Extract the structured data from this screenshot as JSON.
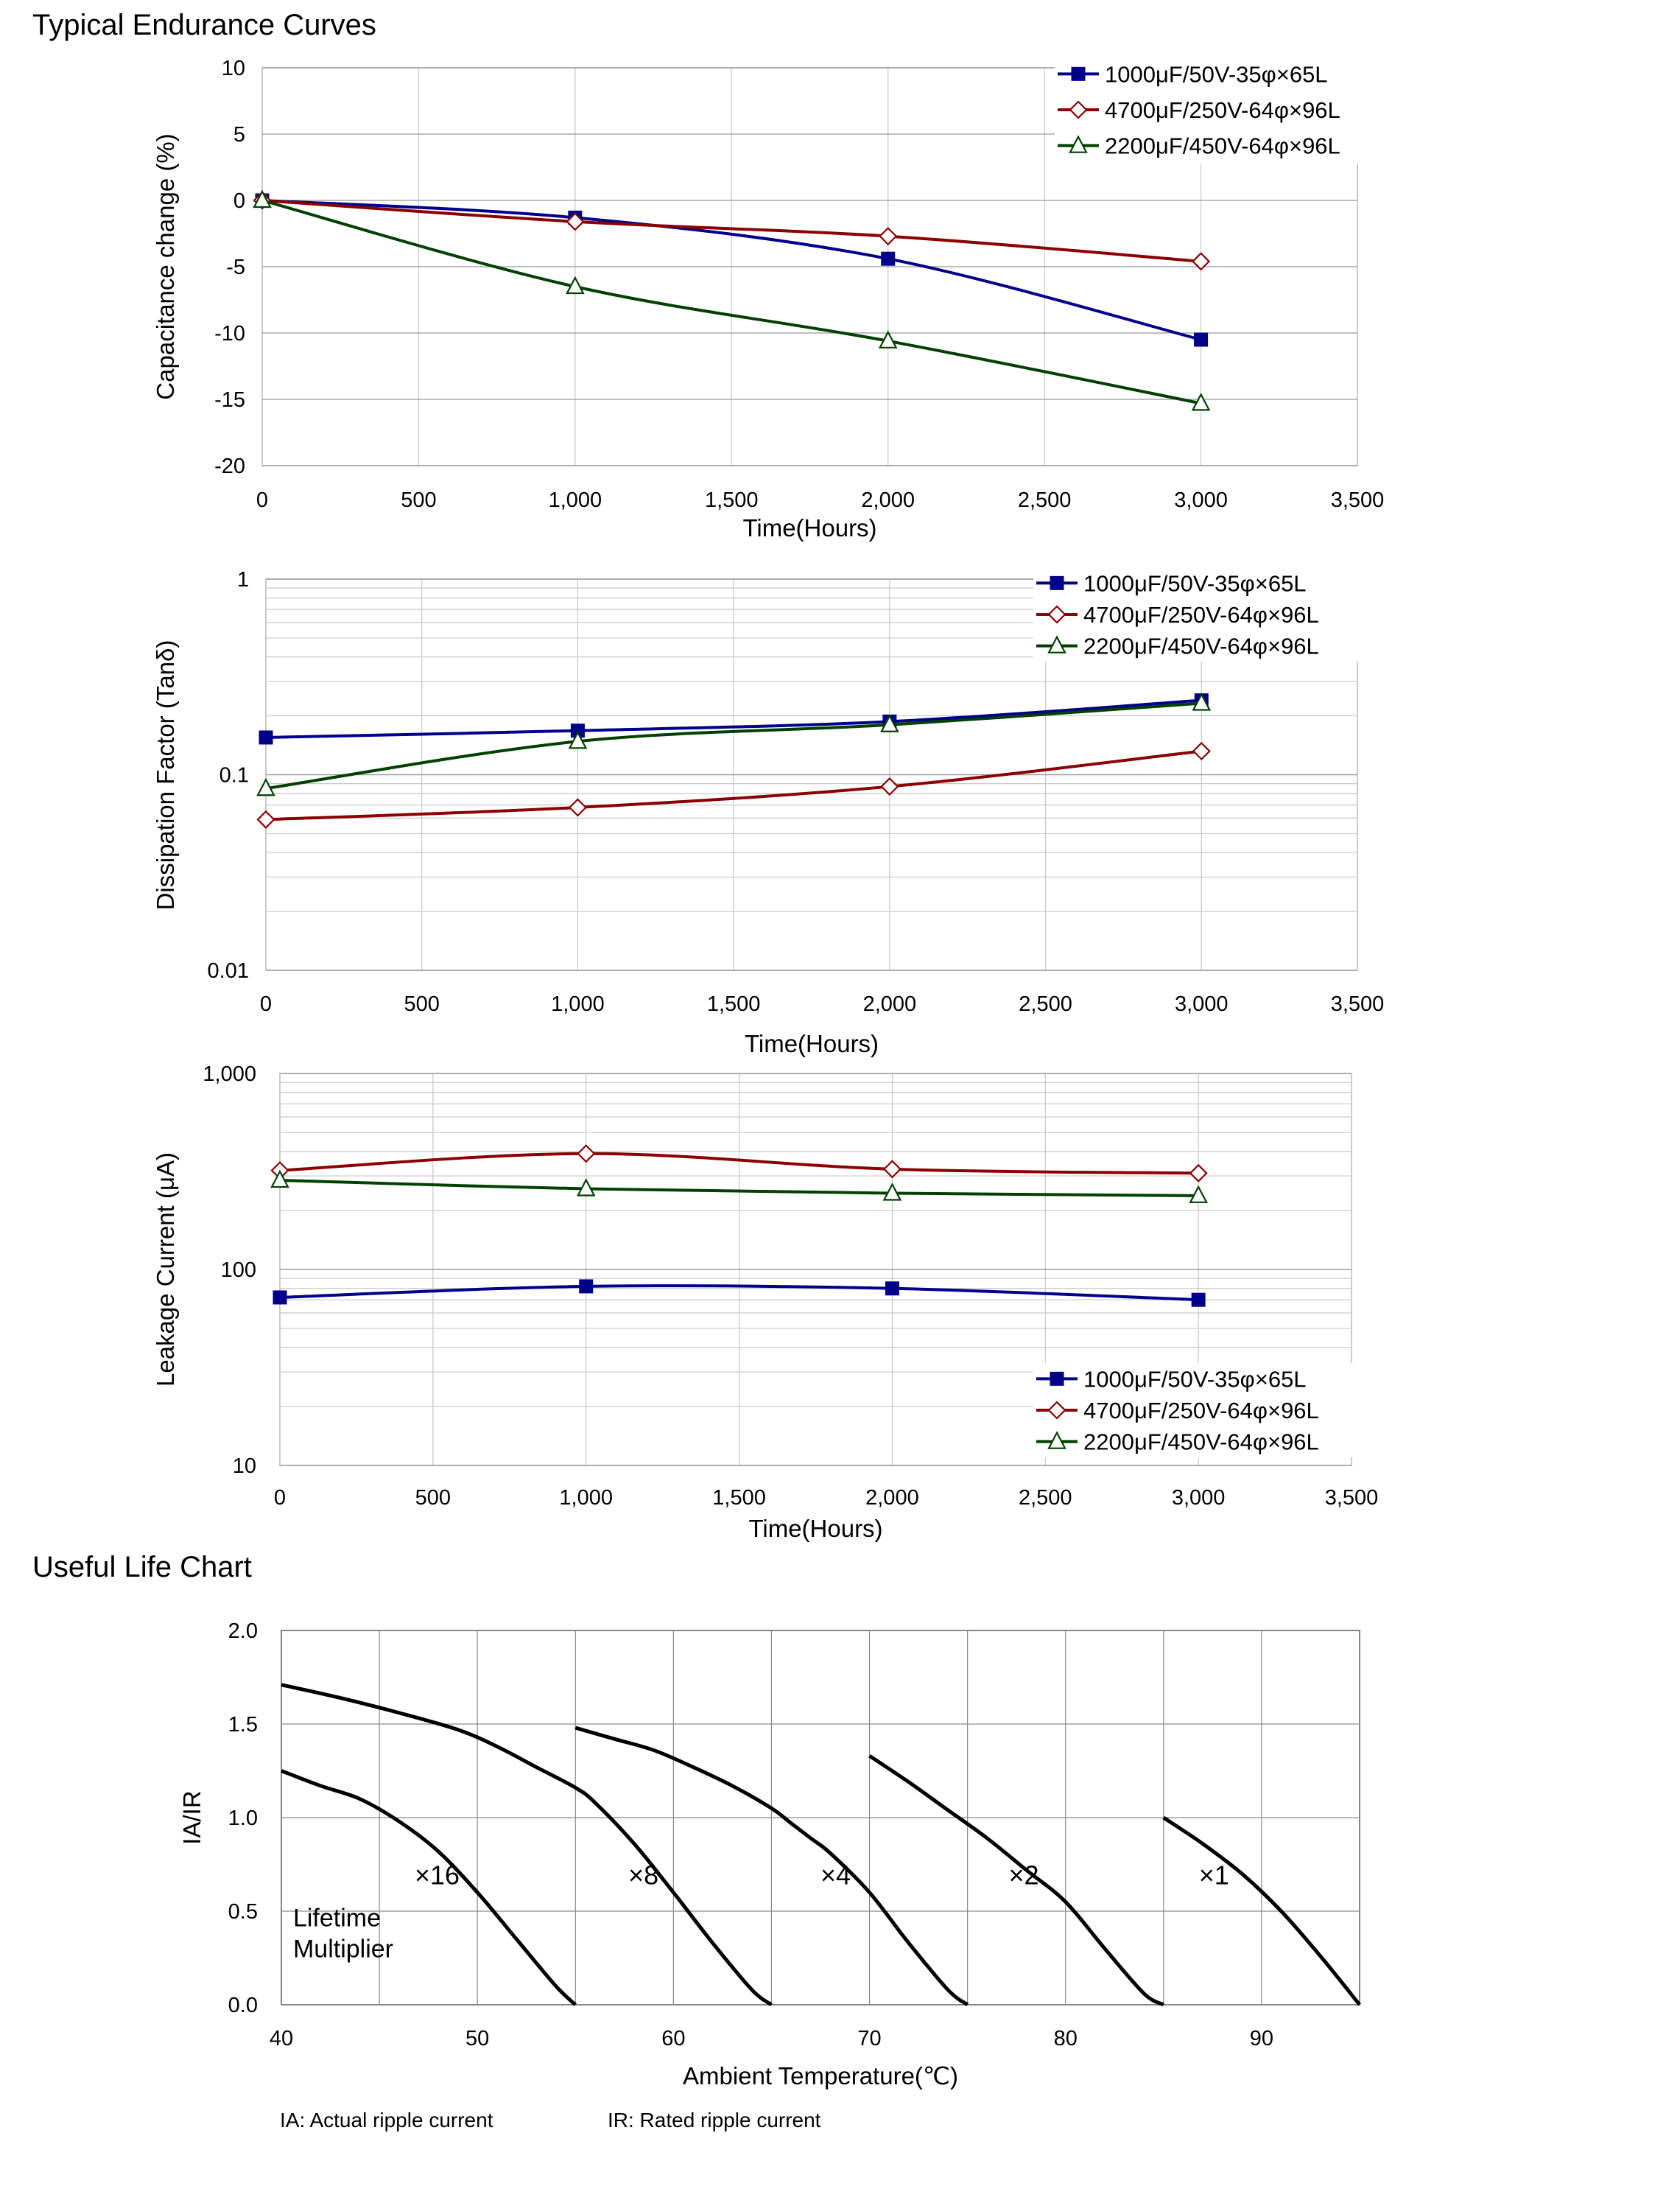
{
  "sections": {
    "endurance_title": "Typical Endurance Curves",
    "useful_life_title": "Useful Life Chart"
  },
  "footnotes": {
    "ia": "IA: Actual ripple current",
    "ir": "IR: Rated ripple current"
  },
  "colors": {
    "blue": "#00008B",
    "red": "#8B0000",
    "green": "#004000",
    "grid": "#c8c8c8"
  },
  "chart_data": [
    {
      "id": "capacitance",
      "type": "line",
      "title": "",
      "xlabel": "Time(Hours)",
      "ylabel": "Capacitance change (%)",
      "xlim": [
        0,
        3500
      ],
      "ylim": [
        -20,
        10
      ],
      "xticks": [
        0,
        500,
        1000,
        1500,
        2000,
        2500,
        3000,
        3500
      ],
      "xtick_labels": [
        "0",
        "500",
        "1,000",
        "1,500",
        "2,000",
        "2,500",
        "3,000",
        "3,500"
      ],
      "yticks": [
        -20,
        -15,
        -10,
        -5,
        0,
        5,
        10
      ],
      "ytick_labels": [
        "-20",
        "-15",
        "-10",
        "-5",
        "0",
        "5",
        "10"
      ],
      "grid": true,
      "legend_position": "top-right",
      "series": [
        {
          "name": "1000μF/50V-35φ×65L",
          "marker": "square",
          "color": "#00008B",
          "x": [
            0,
            1000,
            2000,
            3000
          ],
          "y": [
            0,
            -1.3,
            -4.4,
            -10.5
          ]
        },
        {
          "name": "4700μF/250V-64φ×96L",
          "marker": "diamond",
          "color": "#8B0000",
          "x": [
            0,
            1000,
            2000,
            3000
          ],
          "y": [
            0,
            -1.6,
            -2.7,
            -4.6
          ]
        },
        {
          "name": "2200μF/450V-64φ×96L",
          "marker": "triangle",
          "color": "#004000",
          "x": [
            0,
            1000,
            2000,
            3000
          ],
          "y": [
            0,
            -6.5,
            -10.6,
            -15.3
          ]
        }
      ]
    },
    {
      "id": "dissipation",
      "type": "line",
      "title": "",
      "xlabel": "Time(Hours)",
      "ylabel": "Dissipation Factor (Tanδ)",
      "xlim": [
        0,
        3500
      ],
      "ylim": [
        0.01,
        1
      ],
      "yscale": "log",
      "xticks": [
        0,
        500,
        1000,
        1500,
        2000,
        2500,
        3000,
        3500
      ],
      "xtick_labels": [
        "0",
        "500",
        "1,000",
        "1,500",
        "2,000",
        "2,500",
        "3,000",
        "3,500"
      ],
      "yticks": [
        0.01,
        0.1,
        1
      ],
      "ytick_labels": [
        "0.01",
        "0.1",
        "1"
      ],
      "grid": true,
      "legend_position": "top-right",
      "series": [
        {
          "name": "1000μF/50V-35φ×65L",
          "marker": "square",
          "color": "#00008B",
          "x": [
            0,
            1000,
            2000,
            3000
          ],
          "y": [
            0.155,
            0.168,
            0.187,
            0.24
          ]
        },
        {
          "name": "4700μF/250V-64φ×96L",
          "marker": "diamond",
          "color": "#8B0000",
          "x": [
            0,
            1000,
            2000,
            3000
          ],
          "y": [
            0.059,
            0.068,
            0.087,
            0.132
          ]
        },
        {
          "name": "2200μF/450V-64φ×96L",
          "marker": "triangle",
          "color": "#004000",
          "x": [
            0,
            1000,
            2000,
            3000
          ],
          "y": [
            0.085,
            0.148,
            0.18,
            0.232
          ]
        }
      ]
    },
    {
      "id": "leakage",
      "type": "line",
      "title": "",
      "xlabel": "Time(Hours)",
      "ylabel": "Leakage Current (μA)",
      "xlim": [
        0,
        3500
      ],
      "ylim": [
        10,
        1000
      ],
      "yscale": "log",
      "xticks": [
        0,
        500,
        1000,
        1500,
        2000,
        2500,
        3000,
        3500
      ],
      "xtick_labels": [
        "0",
        "500",
        "1,000",
        "1,500",
        "2,000",
        "2,500",
        "3,000",
        "3,500"
      ],
      "yticks": [
        10,
        100,
        1000
      ],
      "ytick_labels": [
        "10",
        "100",
        "1,000"
      ],
      "grid": true,
      "legend_position": "bottom-right",
      "series": [
        {
          "name": "1000μF/50V-35φ×65L",
          "marker": "square",
          "color": "#00008B",
          "x": [
            0,
            1000,
            2000,
            3000
          ],
          "y": [
            72,
            82,
            80,
            70
          ]
        },
        {
          "name": "4700μF/250V-64φ×96L",
          "marker": "diamond",
          "color": "#8B0000",
          "x": [
            0,
            1000,
            2000,
            3000
          ],
          "y": [
            320,
            390,
            325,
            310
          ]
        },
        {
          "name": "2200μF/450V-64φ×96L",
          "marker": "triangle",
          "color": "#004000",
          "x": [
            0,
            1000,
            2000,
            3000
          ],
          "y": [
            285,
            258,
            245,
            238
          ]
        }
      ]
    },
    {
      "id": "useful_life",
      "type": "line",
      "title": "",
      "xlabel": "Ambient Temperature(℃)",
      "ylabel": "IA/IR",
      "xlim": [
        40,
        95
      ],
      "ylim": [
        0,
        2
      ],
      "xticks": [
        40,
        50,
        60,
        70,
        80,
        90
      ],
      "xtick_labels": [
        "40",
        "50",
        "60",
        "70",
        "80",
        "90"
      ],
      "yticks": [
        0,
        0.5,
        1,
        1.5,
        2
      ],
      "ytick_labels": [
        "0.0",
        "0.5",
        "1.0",
        "1.5",
        "2.0"
      ],
      "grid": true,
      "annotation": [
        "Lifetime",
        "Multiplier"
      ],
      "series": [
        {
          "name": "×16",
          "label_at": [
            46.8,
            0.69
          ],
          "x": [
            40,
            42,
            44,
            46,
            48,
            50,
            52,
            54,
            55
          ],
          "y": [
            1.25,
            1.17,
            1.1,
            0.98,
            0.82,
            0.6,
            0.35,
            0.1,
            0
          ]
        },
        {
          "name": "",
          "x": [
            40,
            43,
            46,
            49,
            51,
            53,
            55,
            56,
            58,
            60,
            62,
            64,
            65
          ],
          "y": [
            1.71,
            1.64,
            1.56,
            1.47,
            1.38,
            1.27,
            1.16,
            1.08,
            0.86,
            0.6,
            0.33,
            0.08,
            0
          ]
        },
        {
          "name": "×8",
          "label_at": [
            57.7,
            0.69
          ],
          "x": [
            55,
            57,
            59,
            61,
            63,
            65,
            66,
            67,
            68,
            70,
            72,
            74,
            75
          ],
          "y": [
            1.48,
            1.42,
            1.36,
            1.27,
            1.17,
            1.05,
            0.97,
            0.89,
            0.81,
            0.6,
            0.33,
            0.08,
            0
          ]
        },
        {
          "name": "×4",
          "label_at": [
            67.5,
            0.69
          ],
          "x": [
            70,
            72,
            74,
            76,
            78,
            80,
            82,
            84,
            85
          ],
          "y": [
            1.33,
            1.19,
            1.04,
            0.89,
            0.72,
            0.55,
            0.3,
            0.06,
            0
          ]
        },
        {
          "name": "×2",
          "label_at": [
            77.1,
            0.69
          ],
          "x": [
            85,
            87,
            89,
            91,
            93,
            95
          ],
          "y": [
            1.0,
            0.86,
            0.7,
            0.5,
            0.26,
            0
          ]
        },
        {
          "name": "×1",
          "label_at": [
            86.8,
            0.69
          ]
        }
      ]
    }
  ]
}
